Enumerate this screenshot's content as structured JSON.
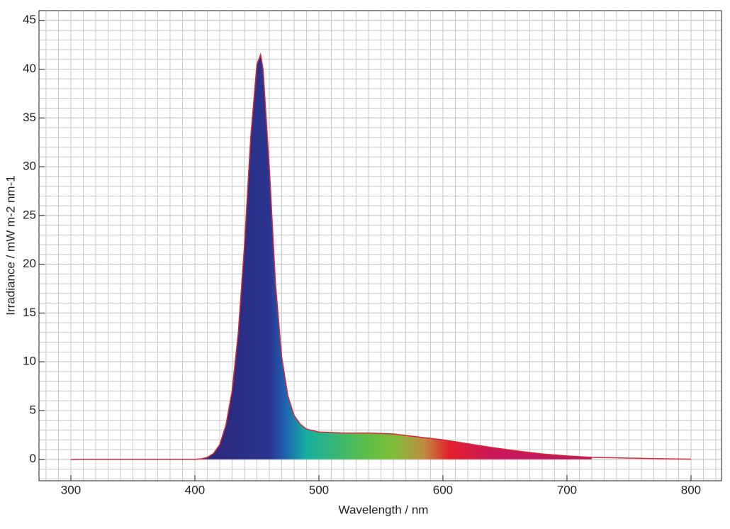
{
  "chart_data": {
    "type": "area",
    "x_label": "Wavelength / nm",
    "y_label": "Irradiance / mW m-2 nm-1",
    "x": [
      300,
      350,
      400,
      405,
      410,
      415,
      420,
      425,
      430,
      435,
      440,
      445,
      450,
      453,
      455,
      460,
      465,
      470,
      475,
      480,
      485,
      490,
      500,
      520,
      540,
      560,
      580,
      600,
      620,
      640,
      660,
      680,
      700,
      720,
      740,
      760,
      780,
      800
    ],
    "series": [
      {
        "name": "Irradiance",
        "color": "#d42a3a",
        "values": [
          0,
          0,
          0,
          0.05,
          0.2,
          0.6,
          1.5,
          3.5,
          7,
          13,
          22,
          33,
          40.5,
          41.5,
          40,
          30,
          18,
          10.5,
          6.5,
          4.5,
          3.6,
          3.1,
          2.8,
          2.7,
          2.7,
          2.6,
          2.3,
          2.0,
          1.6,
          1.2,
          0.85,
          0.55,
          0.35,
          0.2,
          0.15,
          0.1,
          0.05,
          0.02
        ]
      }
    ],
    "xlim": [
      274.3,
      824.6
    ],
    "ylim": [
      -2.2,
      46
    ],
    "xticks": [
      300,
      400,
      500,
      600,
      700,
      800
    ],
    "yticks": [
      0,
      5,
      10,
      15,
      20,
      25,
      30,
      35,
      40,
      45
    ],
    "grid": true,
    "minor_grid": {
      "x": 10,
      "y": 1
    },
    "fill_end": 720,
    "fill_gradient": [
      {
        "x": 420,
        "color": "#2b2a7e"
      },
      {
        "x": 460,
        "color": "#2a3590"
      },
      {
        "x": 472,
        "color": "#1f5fb0"
      },
      {
        "x": 490,
        "color": "#17b0a0"
      },
      {
        "x": 540,
        "color": "#5fbd45"
      },
      {
        "x": 560,
        "color": "#7fbe3a"
      },
      {
        "x": 585,
        "color": "#c08a40"
      },
      {
        "x": 605,
        "color": "#e3202c"
      },
      {
        "x": 640,
        "color": "#c8185a"
      },
      {
        "x": 720,
        "color": "#b81a5c"
      }
    ]
  }
}
